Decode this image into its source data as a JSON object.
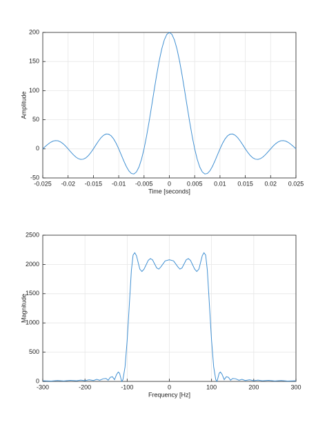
{
  "chart_data": [
    {
      "type": "line",
      "ylabel": "Amplitude",
      "xlabel": "Time [seconds]",
      "xlim": [
        -0.025,
        0.025
      ],
      "xticks": [
        -0.025,
        -0.02,
        -0.015,
        -0.01,
        -0.005,
        0,
        0.005,
        0.01,
        0.015,
        0.02,
        0.025
      ],
      "ylim": [
        -50,
        200
      ],
      "yticks": [
        -50,
        0,
        50,
        100,
        150,
        200
      ],
      "grid": true,
      "series": [
        {
          "color": "#3f8fd2",
          "x": [
            -0.025,
            -0.0245,
            -0.024,
            -0.0235,
            -0.023,
            -0.0225,
            -0.022,
            -0.0215,
            -0.021,
            -0.0205,
            -0.02,
            -0.0195,
            -0.019,
            -0.0185,
            -0.018,
            -0.0175,
            -0.017,
            -0.0165,
            -0.016,
            -0.0155,
            -0.015,
            -0.0145,
            -0.014,
            -0.0135,
            -0.013,
            -0.0125,
            -0.012,
            -0.0115,
            -0.011,
            -0.0105,
            -0.01,
            -0.0095,
            -0.009,
            -0.0085,
            -0.008,
            -0.0075,
            -0.007,
            -0.0065,
            -0.006,
            -0.0055,
            -0.005,
            -0.0045,
            -0.004,
            -0.0035,
            -0.003,
            -0.0025,
            -0.002,
            -0.0015,
            -0.001,
            -0.0005,
            0,
            0.0005,
            0.001,
            0.0015,
            0.002,
            0.0025,
            0.003,
            0.0035,
            0.004,
            0.0045,
            0.005,
            0.0055,
            0.006,
            0.0065,
            0.007,
            0.0075,
            0.008,
            0.0085,
            0.009,
            0.0095,
            0.01,
            0.0105,
            0.011,
            0.0115,
            0.012,
            0.0125,
            0.013,
            0.0135,
            0.014,
            0.0145,
            0.015,
            0.0155,
            0.016,
            0.0165,
            0.017,
            0.0175,
            0.018,
            0.0185,
            0.019,
            0.0195,
            0.02,
            0.0205,
            0.021,
            0.0215,
            0.022,
            0.0225,
            0.023,
            0.0235,
            0.024,
            0.0245,
            0.025
          ],
          "values": [
            0,
            4.0,
            7.8,
            11.0,
            13.2,
            14.1,
            13.8,
            12.0,
            8.9,
            4.8,
            0,
            -5.0,
            -9.8,
            -13.9,
            -16.8,
            -18.2,
            -17.8,
            -15.6,
            -11.7,
            -6.3,
            0,
            6.8,
            13.4,
            19.1,
            23.3,
            25.5,
            25.2,
            22.4,
            17.0,
            9.4,
            0,
            -10.4,
            -20.8,
            -30.3,
            -37.8,
            -42.4,
            -43.2,
            -39.6,
            -31.2,
            -17.9,
            0,
            21.9,
            46.8,
            73.6,
            100.9,
            127.3,
            151.4,
            171.7,
            187.1,
            196.7,
            200,
            196.7,
            187.1,
            171.7,
            151.4,
            127.3,
            100.9,
            73.6,
            46.8,
            21.9,
            0,
            -17.9,
            -31.2,
            -39.6,
            -43.2,
            -42.4,
            -37.8,
            -30.3,
            -20.8,
            -10.4,
            0,
            9.4,
            17.0,
            22.4,
            25.2,
            25.5,
            23.3,
            19.1,
            13.4,
            6.8,
            0,
            -6.3,
            -11.7,
            -15.6,
            -17.8,
            -18.2,
            -16.8,
            -13.9,
            -9.8,
            -5.0,
            0,
            4.8,
            8.9,
            12.0,
            13.8,
            14.1,
            13.2,
            11.0,
            7.8,
            4.0,
            0
          ]
        }
      ]
    },
    {
      "type": "line",
      "ylabel": "Magnitude",
      "xlabel": "Frequency [Hz]",
      "xlim": [
        -300,
        300
      ],
      "xticks": [
        -300,
        -200,
        -100,
        0,
        100,
        200,
        300
      ],
      "ylim": [
        0,
        2500
      ],
      "yticks": [
        0,
        500,
        1000,
        1500,
        2000,
        2500
      ],
      "grid": true,
      "series": [
        {
          "color": "#3f8fd2",
          "x": [
            -300,
            -280,
            -265,
            -250,
            -235,
            -220,
            -210,
            -200,
            -190,
            -180,
            -172,
            -165,
            -157,
            -150,
            -145,
            -140,
            -135,
            -130,
            -125,
            -121,
            -118,
            -113,
            -110,
            -105,
            -100,
            -95,
            -90,
            -86,
            -82,
            -78,
            -70,
            -65,
            -60,
            -50,
            -45,
            -40,
            -30,
            -25,
            -20,
            -10,
            0,
            10,
            20,
            25,
            30,
            40,
            45,
            50,
            60,
            65,
            70,
            78,
            82,
            86,
            90,
            95,
            100,
            105,
            110,
            113,
            118,
            121,
            125,
            130,
            135,
            140,
            145,
            150,
            157,
            165,
            172,
            180,
            190,
            200,
            210,
            220,
            235,
            250,
            265,
            280,
            300
          ],
          "values": [
            10,
            6,
            14,
            8,
            18,
            10,
            22,
            12,
            28,
            15,
            35,
            20,
            45,
            50,
            20,
            70,
            80,
            30,
            120,
            160,
            140,
            0,
            30,
            250,
            700,
            1300,
            1900,
            2160,
            2200,
            2150,
            1920,
            1880,
            1920,
            2070,
            2100,
            2080,
            1940,
            1920,
            1960,
            2060,
            2080,
            2060,
            1960,
            1920,
            1940,
            2080,
            2100,
            2070,
            1920,
            1880,
            1920,
            2150,
            2200,
            2160,
            1900,
            1300,
            700,
            250,
            30,
            0,
            140,
            160,
            120,
            30,
            80,
            70,
            20,
            50,
            45,
            20,
            35,
            15,
            28,
            12,
            22,
            10,
            18,
            8,
            14,
            6,
            10
          ]
        }
      ]
    }
  ]
}
